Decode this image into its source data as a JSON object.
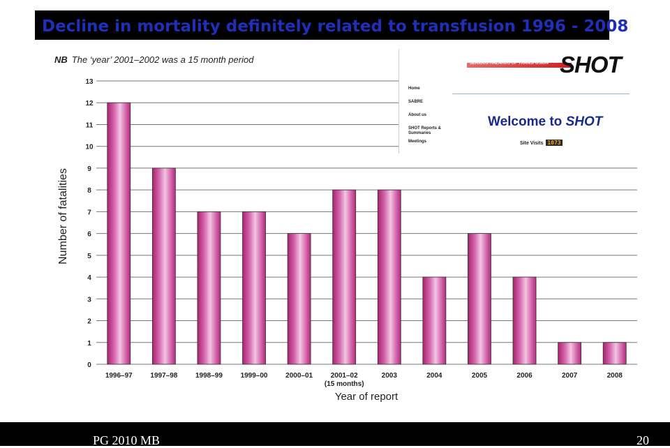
{
  "slide": {
    "title": "Decline in mortality definitely related to transfusion 1996 - 2008",
    "note_prefix": "NB",
    "note_text": "The ‘year’ 2001–2002 was a 15 month period",
    "footer_left": "PG 2010 MB",
    "page_number": "20"
  },
  "shot_website": {
    "banner_text": "SERIOUS HAZARDS OF TRANSFUSION",
    "logo": "SHOT",
    "nav": [
      "Home",
      "SABRE",
      "About us",
      "SHOT Reports & Summaries",
      "Meetings"
    ],
    "welcome_prefix": "Welcome to ",
    "welcome_brand": "SHOT",
    "visits_label": "Site Visits",
    "visits_count": "1073"
  },
  "chart_data": {
    "type": "bar",
    "categories": [
      "1996–97",
      "1997–98",
      "1998–99",
      "1999–00",
      "2000–01",
      "2001–02",
      "2003",
      "2004",
      "2005",
      "2006",
      "2007",
      "2008"
    ],
    "category_sublabels": [
      "",
      "",
      "",
      "",
      "",
      "(15 months)",
      "",
      "",
      "",
      "",
      "",
      ""
    ],
    "values": [
      12,
      9,
      7,
      7,
      6,
      8,
      8,
      4,
      6,
      4,
      1,
      1
    ],
    "xlabel": "Year of report",
    "ylabel": "Number of fatalities",
    "ylim": [
      0,
      13
    ],
    "yticks": [
      0,
      1,
      2,
      3,
      4,
      5,
      6,
      7,
      8,
      9,
      10,
      11,
      12,
      13
    ],
    "grid": true,
    "bar_color": "#c2378f"
  }
}
